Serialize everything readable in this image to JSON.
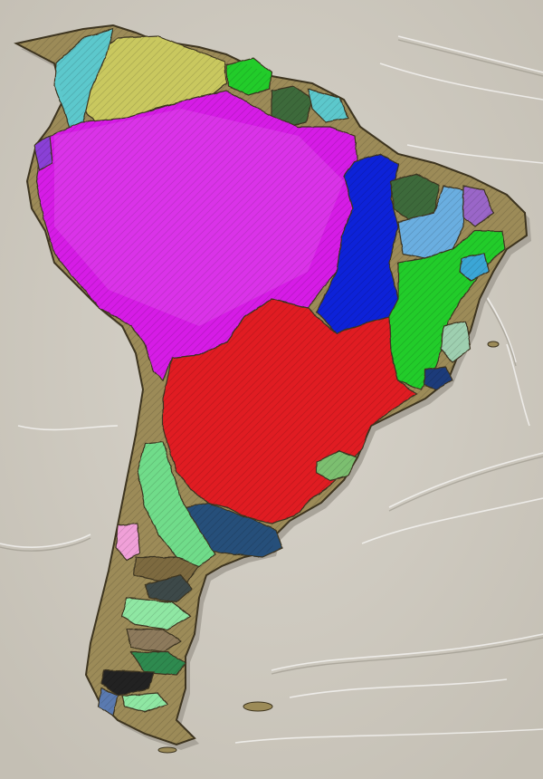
{
  "map": {
    "kind": "South America drainage basin shaded-relief map",
    "text_labels": [],
    "colors": {
      "ocean": "#cfcbc2",
      "ocean_shadow": "#a9a49a",
      "land_base": "#9c8b58",
      "coast_edge": "#3e3520",
      "amazon": "#d61ee6",
      "parana": "#e01c22",
      "tocantins": "#0a22d8",
      "sao_francisco": "#22cc2a",
      "orinoco": "#c9c85e",
      "magdalena": "#5cc8cc",
      "parnaiba": "#6aaee0",
      "colorado": "#25507a",
      "northeast_green": "#3d6b3a",
      "uruguay_east": "#7bbf6f",
      "patagonia_dark": "#222222",
      "patagonia_mint": "#8fe7a3",
      "patagonia_blue": "#5a7ab0"
    },
    "basins": [
      {
        "id": "amazon",
        "color": "#d61ee6"
      },
      {
        "id": "parana-la-plata",
        "color": "#e01c22"
      },
      {
        "id": "tocantins-araguaia",
        "color": "#0a22d8"
      },
      {
        "id": "sao-francisco",
        "color": "#22cc2a"
      },
      {
        "id": "orinoco",
        "color": "#c9c85e"
      },
      {
        "id": "magdalena",
        "color": "#5cc8cc"
      },
      {
        "id": "parnaiba",
        "color": "#6aaee0"
      },
      {
        "id": "colorado",
        "color": "#25507a"
      }
    ]
  }
}
